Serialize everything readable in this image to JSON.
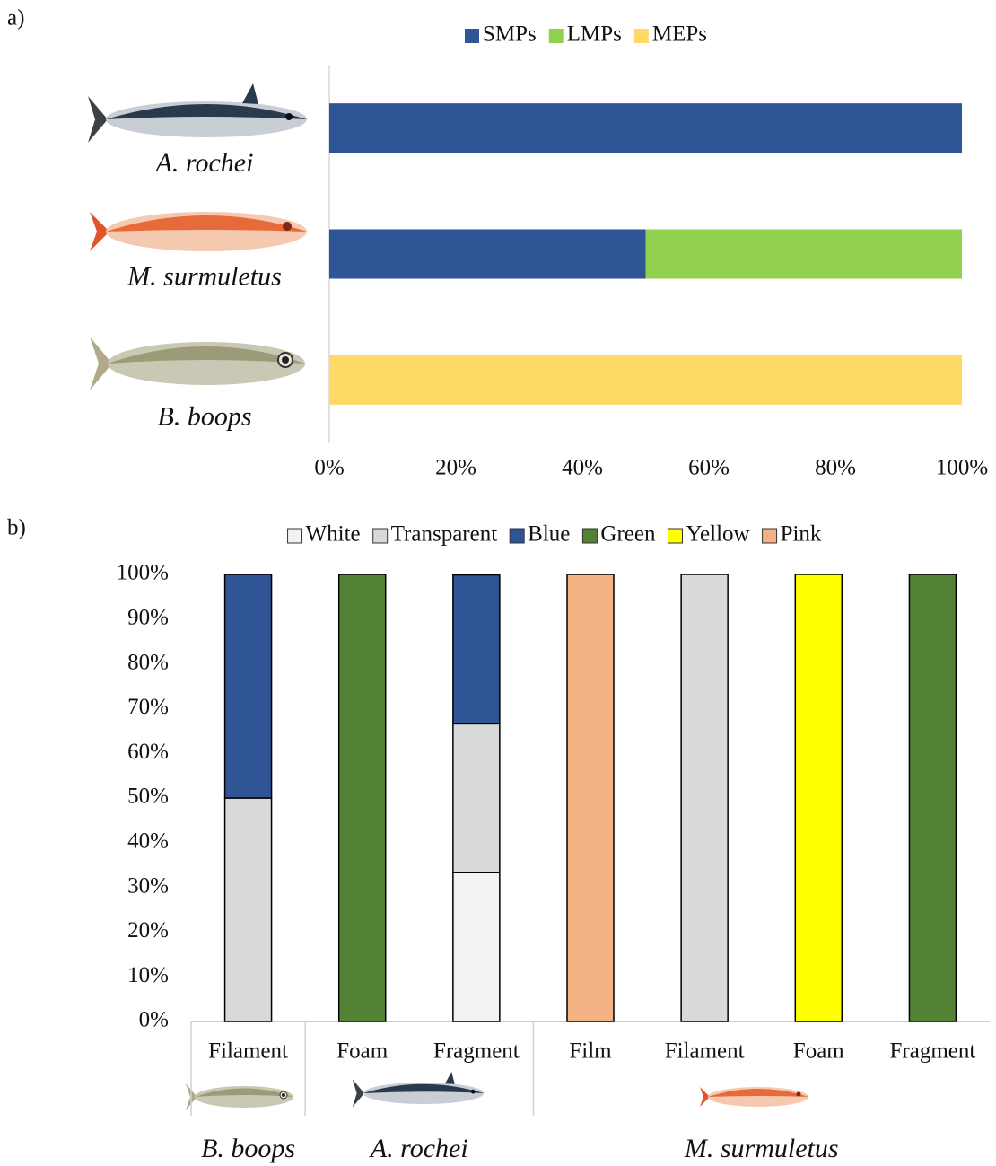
{
  "chart_data": [
    {
      "type": "barh",
      "stacked": true,
      "panel_label": "a)",
      "categories": [
        "A. rochei",
        "M. surmuletus",
        "B. boops"
      ],
      "series": [
        {
          "name": "SMPs",
          "color": "#2f5597",
          "values": [
            100,
            50,
            0
          ]
        },
        {
          "name": "LMPs",
          "color": "#92d050",
          "values": [
            0,
            50,
            0
          ]
        },
        {
          "name": "MEPs",
          "color": "#ffd966",
          "values": [
            0,
            0,
            100
          ]
        }
      ],
      "xlim": [
        0,
        100
      ],
      "xticks": [
        {
          "value": 0,
          "label": "0%"
        },
        {
          "value": 20,
          "label": "20%"
        },
        {
          "value": 40,
          "label": "40%"
        },
        {
          "value": 60,
          "label": "60%"
        },
        {
          "value": 80,
          "label": "80%"
        },
        {
          "value": 100,
          "label": "100%"
        }
      ]
    },
    {
      "type": "bar",
      "stacked": true,
      "panel_label": "b)",
      "groups": [
        {
          "name": "B. boops",
          "categories": [
            "Filament"
          ]
        },
        {
          "name": "A. rochei",
          "categories": [
            "Foam",
            "Fragment"
          ]
        },
        {
          "name": "M. surmuletus",
          "categories": [
            "Film",
            "Filament",
            "Foam",
            "Fragment"
          ]
        }
      ],
      "series": [
        {
          "name": "White",
          "color": "#f2f2f2",
          "values": [
            0,
            0,
            33.3,
            0,
            0,
            0,
            0
          ]
        },
        {
          "name": "Transparent",
          "color": "#d9d9d9",
          "values": [
            50,
            0,
            33.3,
            0,
            100,
            0,
            0
          ]
        },
        {
          "name": "Blue",
          "color": "#2f5597",
          "values": [
            50,
            0,
            33.3,
            0,
            0,
            0,
            0
          ]
        },
        {
          "name": "Green",
          "color": "#548235",
          "values": [
            0,
            100,
            0,
            0,
            0,
            0,
            100
          ]
        },
        {
          "name": "Yellow",
          "color": "#ffff00",
          "values": [
            0,
            0,
            0,
            0,
            0,
            100,
            0
          ]
        },
        {
          "name": "Pink",
          "color": "#f4b183",
          "values": [
            0,
            0,
            0,
            100,
            0,
            0,
            0
          ]
        }
      ],
      "ylim": [
        0,
        100
      ],
      "yticks": [
        {
          "value": 0,
          "label": "0%"
        },
        {
          "value": 10,
          "label": "10%"
        },
        {
          "value": 20,
          "label": "20%"
        },
        {
          "value": 30,
          "label": "30%"
        },
        {
          "value": 40,
          "label": "40%"
        },
        {
          "value": 50,
          "label": "50%"
        },
        {
          "value": 60,
          "label": "60%"
        },
        {
          "value": 70,
          "label": "70%"
        },
        {
          "value": 80,
          "label": "80%"
        },
        {
          "value": 90,
          "label": "90%"
        },
        {
          "value": 100,
          "label": "100%"
        }
      ]
    }
  ]
}
